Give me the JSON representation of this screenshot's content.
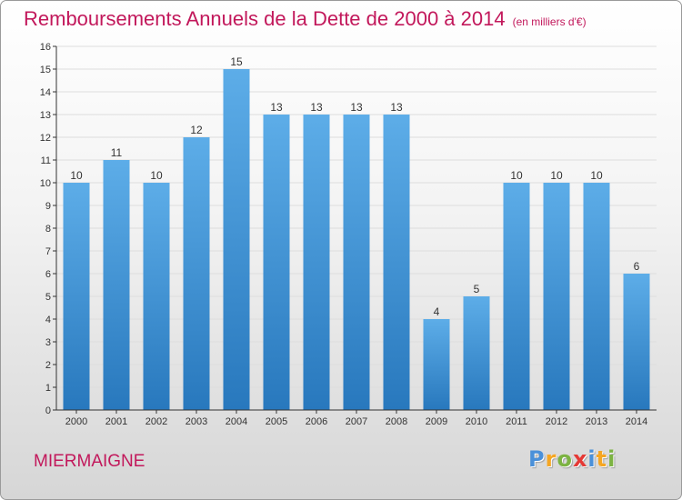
{
  "header": {
    "title": "Remboursements Annuels de la Dette de 2000 à 2014",
    "unit": "(en milliers d'€)"
  },
  "footer": {
    "commune": "MIERMAIGNE",
    "logo_letters": [
      "P",
      "r",
      "o",
      "x",
      "i",
      "t",
      "i"
    ],
    "logo_colors": [
      "#4a90d9",
      "#f5a623",
      "#7cb342",
      "#e53935",
      "#4a90d9",
      "#f5a623",
      "#7cb342"
    ]
  },
  "colors": {
    "title": "#c2185b",
    "bar_top": "#5dade8",
    "bar_bottom": "#2878bd",
    "axis": "#333333",
    "grid": "#dddddd"
  },
  "chart_data": {
    "type": "bar",
    "title": "Remboursements Annuels de la Dette de 2000 à 2014",
    "xlabel": "",
    "ylabel": "",
    "ylim": [
      0,
      16
    ],
    "yticks": [
      "0",
      "1",
      "2",
      "3",
      "4",
      "5",
      "6",
      "7",
      "8",
      "9",
      "10",
      "11",
      "12",
      "13",
      "14",
      "15",
      "16"
    ],
    "categories": [
      "2000",
      "2001",
      "2002",
      "2003",
      "2004",
      "2005",
      "2006",
      "2007",
      "2008",
      "2009",
      "2010",
      "2011",
      "2012",
      "2013",
      "2014"
    ],
    "values": [
      10,
      11,
      10,
      12,
      15,
      13,
      13,
      13,
      13,
      4,
      5,
      10,
      10,
      10,
      6
    ],
    "value_labels": [
      "10",
      "11",
      "10",
      "12",
      "15",
      "13",
      "13",
      "13",
      "13",
      "4",
      "5",
      "10",
      "10",
      "10",
      "6"
    ]
  }
}
